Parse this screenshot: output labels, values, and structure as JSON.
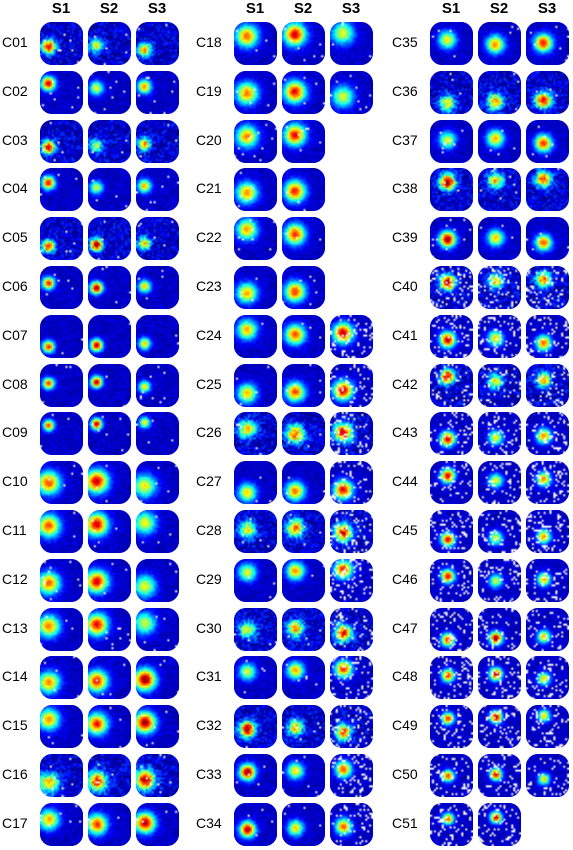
{
  "session_headers": [
    "S1",
    "S2",
    "S3"
  ],
  "columns": [
    {
      "cells": [
        {
          "label": "C01",
          "sessions": 3
        },
        {
          "label": "C02",
          "sessions": 3
        },
        {
          "label": "C03",
          "sessions": 3
        },
        {
          "label": "C04",
          "sessions": 3
        },
        {
          "label": "C05",
          "sessions": 3
        },
        {
          "label": "C06",
          "sessions": 3
        },
        {
          "label": "C07",
          "sessions": 3
        },
        {
          "label": "C08",
          "sessions": 3
        },
        {
          "label": "C09",
          "sessions": 3
        },
        {
          "label": "C10",
          "sessions": 3
        },
        {
          "label": "C11",
          "sessions": 3
        },
        {
          "label": "C12",
          "sessions": 3
        },
        {
          "label": "C13",
          "sessions": 3
        },
        {
          "label": "C14",
          "sessions": 3
        },
        {
          "label": "C15",
          "sessions": 3
        },
        {
          "label": "C16",
          "sessions": 3
        },
        {
          "label": "C17",
          "sessions": 3
        }
      ]
    },
    {
      "cells": [
        {
          "label": "C18",
          "sessions": 3
        },
        {
          "label": "C19",
          "sessions": 3
        },
        {
          "label": "C20",
          "sessions": 2
        },
        {
          "label": "C21",
          "sessions": 2
        },
        {
          "label": "C22",
          "sessions": 2
        },
        {
          "label": "C23",
          "sessions": 2
        },
        {
          "label": "C24",
          "sessions": 3
        },
        {
          "label": "C25",
          "sessions": 3
        },
        {
          "label": "C26",
          "sessions": 3
        },
        {
          "label": "C27",
          "sessions": 3
        },
        {
          "label": "C28",
          "sessions": 3
        },
        {
          "label": "C29",
          "sessions": 3
        },
        {
          "label": "C30",
          "sessions": 3
        },
        {
          "label": "C31",
          "sessions": 3
        },
        {
          "label": "C32",
          "sessions": 3
        },
        {
          "label": "C33",
          "sessions": 3
        },
        {
          "label": "C34",
          "sessions": 3
        }
      ]
    },
    {
      "cells": [
        {
          "label": "C35",
          "sessions": 3
        },
        {
          "label": "C36",
          "sessions": 3
        },
        {
          "label": "C37",
          "sessions": 3
        },
        {
          "label": "C38",
          "sessions": 3
        },
        {
          "label": "C39",
          "sessions": 3
        },
        {
          "label": "C40",
          "sessions": 3
        },
        {
          "label": "C41",
          "sessions": 3
        },
        {
          "label": "C42",
          "sessions": 3
        },
        {
          "label": "C43",
          "sessions": 3
        },
        {
          "label": "C44",
          "sessions": 3
        },
        {
          "label": "C45",
          "sessions": 3
        },
        {
          "label": "C46",
          "sessions": 3
        },
        {
          "label": "C47",
          "sessions": 3
        },
        {
          "label": "C48",
          "sessions": 3
        },
        {
          "label": "C49",
          "sessions": 3
        },
        {
          "label": "C50",
          "sessions": 3
        },
        {
          "label": "C51",
          "sessions": 2
        }
      ]
    }
  ],
  "colors": {
    "background": "#0a1fb5",
    "colormap": [
      "#0000aa",
      "#0033ff",
      "#00ccff",
      "#33ff99",
      "#ccff00",
      "#ffaa00",
      "#ff2200",
      "#aa0000"
    ]
  }
}
